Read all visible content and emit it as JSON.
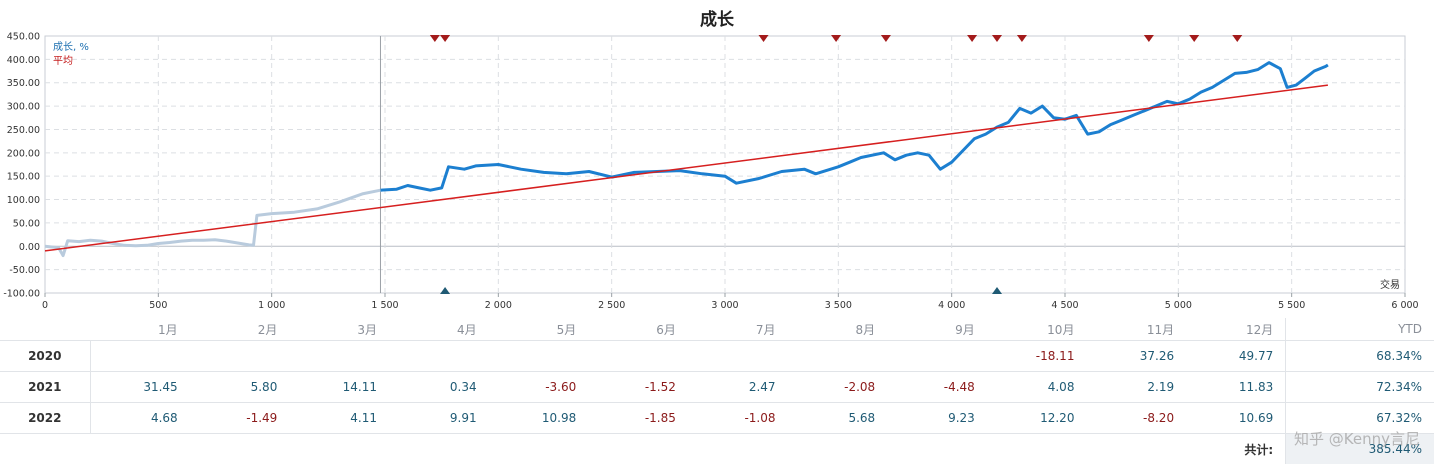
{
  "chart_data": {
    "type": "line",
    "title": "成长",
    "xlabel": "交易",
    "ylabel": "",
    "xlim": [
      0,
      6000
    ],
    "ylim": [
      -100,
      450
    ],
    "x_ticks": [
      "0",
      "500",
      "1 000",
      "1 500",
      "2 000",
      "2 500",
      "3 000",
      "3 500",
      "4 000",
      "4 500",
      "5 000",
      "5 500",
      "6 000"
    ],
    "y_ticks": [
      "-100.00",
      "-50.00",
      "0.00",
      "50.00",
      "100.00",
      "150.00",
      "200.00",
      "250.00",
      "300.00",
      "350.00",
      "400.00",
      "450.00"
    ],
    "grid": true,
    "legend_position": "top-left",
    "vertical_marker_x": 1480,
    "series": [
      {
        "name": "成长, %",
        "color": "#1c7fd0",
        "values_before_marker_color": "#b9cbdd",
        "points": [
          [
            0,
            0
          ],
          [
            60,
            -3
          ],
          [
            80,
            -20
          ],
          [
            100,
            12
          ],
          [
            150,
            10
          ],
          [
            200,
            13
          ],
          [
            250,
            11
          ],
          [
            300,
            6
          ],
          [
            350,
            2
          ],
          [
            400,
            1
          ],
          [
            450,
            2
          ],
          [
            500,
            6
          ],
          [
            550,
            8
          ],
          [
            600,
            11
          ],
          [
            650,
            13
          ],
          [
            700,
            13
          ],
          [
            750,
            14
          ],
          [
            800,
            11
          ],
          [
            850,
            7
          ],
          [
            900,
            3
          ],
          [
            920,
            2
          ],
          [
            935,
            66
          ],
          [
            1000,
            70
          ],
          [
            1100,
            73
          ],
          [
            1200,
            80
          ],
          [
            1300,
            95
          ],
          [
            1400,
            112
          ],
          [
            1480,
            120
          ],
          [
            1550,
            122
          ],
          [
            1600,
            130
          ],
          [
            1650,
            125
          ],
          [
            1700,
            120
          ],
          [
            1750,
            125
          ],
          [
            1780,
            170
          ],
          [
            1850,
            165
          ],
          [
            1900,
            172
          ],
          [
            2000,
            175
          ],
          [
            2100,
            165
          ],
          [
            2200,
            158
          ],
          [
            2300,
            155
          ],
          [
            2400,
            160
          ],
          [
            2500,
            148
          ],
          [
            2600,
            158
          ],
          [
            2700,
            160
          ],
          [
            2800,
            162
          ],
          [
            2900,
            155
          ],
          [
            3000,
            150
          ],
          [
            3050,
            135
          ],
          [
            3150,
            145
          ],
          [
            3250,
            160
          ],
          [
            3350,
            165
          ],
          [
            3400,
            155
          ],
          [
            3500,
            170
          ],
          [
            3550,
            180
          ],
          [
            3600,
            190
          ],
          [
            3700,
            200
          ],
          [
            3750,
            185
          ],
          [
            3800,
            195
          ],
          [
            3850,
            200
          ],
          [
            3900,
            195
          ],
          [
            3950,
            165
          ],
          [
            4000,
            180
          ],
          [
            4050,
            205
          ],
          [
            4100,
            230
          ],
          [
            4150,
            240
          ],
          [
            4200,
            255
          ],
          [
            4250,
            265
          ],
          [
            4300,
            295
          ],
          [
            4350,
            285
          ],
          [
            4400,
            300
          ],
          [
            4450,
            275
          ],
          [
            4500,
            272
          ],
          [
            4550,
            280
          ],
          [
            4600,
            240
          ],
          [
            4650,
            245
          ],
          [
            4700,
            260
          ],
          [
            4750,
            270
          ],
          [
            4800,
            280
          ],
          [
            4850,
            290
          ],
          [
            4900,
            300
          ],
          [
            4950,
            310
          ],
          [
            5000,
            305
          ],
          [
            5050,
            315
          ],
          [
            5100,
            330
          ],
          [
            5150,
            340
          ],
          [
            5200,
            355
          ],
          [
            5250,
            370
          ],
          [
            5300,
            372
          ],
          [
            5350,
            378
          ],
          [
            5400,
            393
          ],
          [
            5450,
            380
          ],
          [
            5480,
            340
          ],
          [
            5520,
            345
          ],
          [
            5560,
            360
          ],
          [
            5600,
            375
          ],
          [
            5650,
            385
          ],
          [
            5660,
            388
          ]
        ]
      },
      {
        "name": "平均",
        "color": "#d61f1f",
        "points": [
          [
            0,
            -10
          ],
          [
            5660,
            345
          ]
        ]
      }
    ],
    "markers_top_x": [
      1720,
      1765,
      3170,
      3490,
      3710,
      4090,
      4200,
      4310,
      4870,
      5070,
      5260
    ],
    "markers_bottom_x": [
      1765,
      4200
    ]
  },
  "table": {
    "headers": [
      "",
      "1月",
      "2月",
      "3月",
      "4月",
      "5月",
      "6月",
      "7月",
      "8月",
      "9月",
      "10月",
      "11月",
      "12月",
      "YTD"
    ],
    "rows": [
      {
        "year": "2020",
        "values": [
          "",
          "",
          "",
          "",
          "",
          "",
          "",
          "",
          "",
          "-18.11",
          "37.26",
          "49.77"
        ],
        "ytd": "68.34%"
      },
      {
        "year": "2021",
        "values": [
          "31.45",
          "5.80",
          "14.11",
          "0.34",
          "-3.60",
          "-1.52",
          "2.47",
          "-2.08",
          "-4.48",
          "4.08",
          "2.19",
          "11.83"
        ],
        "ytd": "72.34%"
      },
      {
        "year": "2022",
        "values": [
          "4.68",
          "-1.49",
          "4.11",
          "9.91",
          "10.98",
          "-1.85",
          "-1.08",
          "5.68",
          "9.23",
          "12.20",
          "-8.20",
          "10.69"
        ],
        "ytd": "67.32%"
      }
    ],
    "total_label": "共计:",
    "total_value": "385.44%"
  },
  "watermark": "知乎 @Kenny言尼"
}
